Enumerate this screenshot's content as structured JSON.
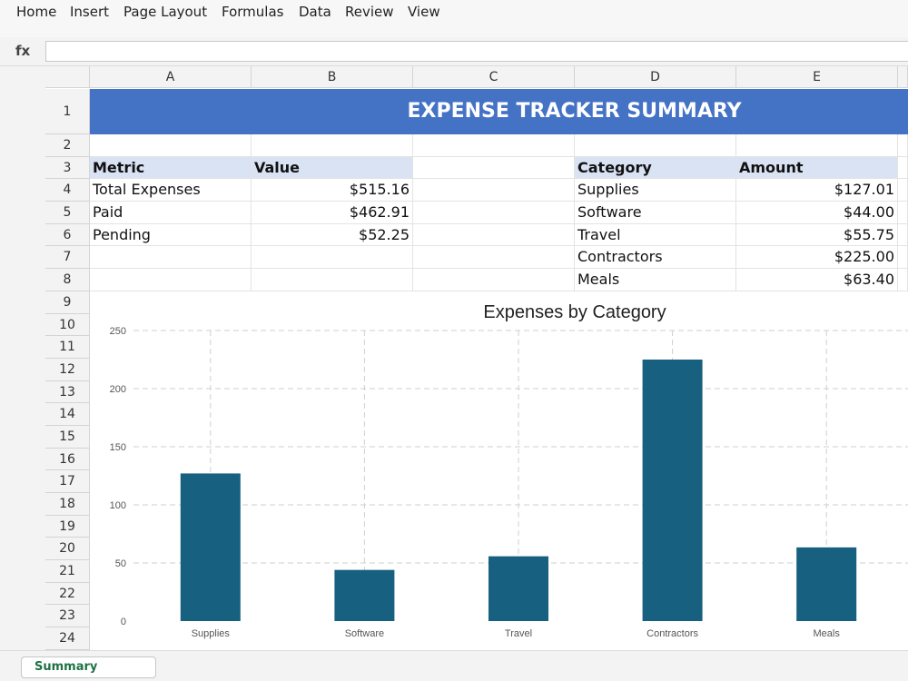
{
  "menu": [
    "Home",
    "Insert",
    "Page Layout",
    "Formulas",
    "Data",
    "Review",
    "View"
  ],
  "formula_bar": {
    "label": "fx",
    "value": ""
  },
  "columns": [
    "A",
    "B",
    "C",
    "D",
    "E"
  ],
  "rows": [
    "1",
    "2",
    "3",
    "4",
    "5",
    "6",
    "7",
    "8",
    "9",
    "10",
    "11",
    "12",
    "13",
    "14",
    "15",
    "16",
    "17",
    "18",
    "19",
    "20",
    "21",
    "22",
    "23",
    "24"
  ],
  "title": "EXPENSE TRACKER SUMMARY",
  "metrics_table": {
    "headers": [
      "Metric",
      "Value"
    ],
    "rows": [
      [
        "Total Expenses",
        "$515.16"
      ],
      [
        "Paid",
        "$462.91"
      ],
      [
        "Pending",
        "$52.25"
      ]
    ]
  },
  "category_table": {
    "headers": [
      "Category",
      "Amount"
    ],
    "rows": [
      [
        "Supplies",
        "$127.01"
      ],
      [
        "Software",
        "$44.00"
      ],
      [
        "Travel",
        "$55.75"
      ],
      [
        "Contractors",
        "$225.00"
      ],
      [
        "Meals",
        "$63.40"
      ]
    ]
  },
  "chart_data": {
    "type": "bar",
    "title": "Expenses by Category",
    "categories": [
      "Supplies",
      "Software",
      "Travel",
      "Contractors",
      "Meals"
    ],
    "values": [
      127.01,
      44.0,
      55.75,
      225.0,
      63.4
    ],
    "ylim": [
      0,
      250
    ],
    "yticks": [
      0,
      50,
      100,
      150,
      200,
      250
    ],
    "grid": true,
    "bar_color": "#17607f"
  },
  "sheet_tabs": [
    "Summary"
  ],
  "colors": {
    "title_band": "#4472c4",
    "header_fill": "#dae3f3",
    "tab_text": "#1e7145"
  }
}
